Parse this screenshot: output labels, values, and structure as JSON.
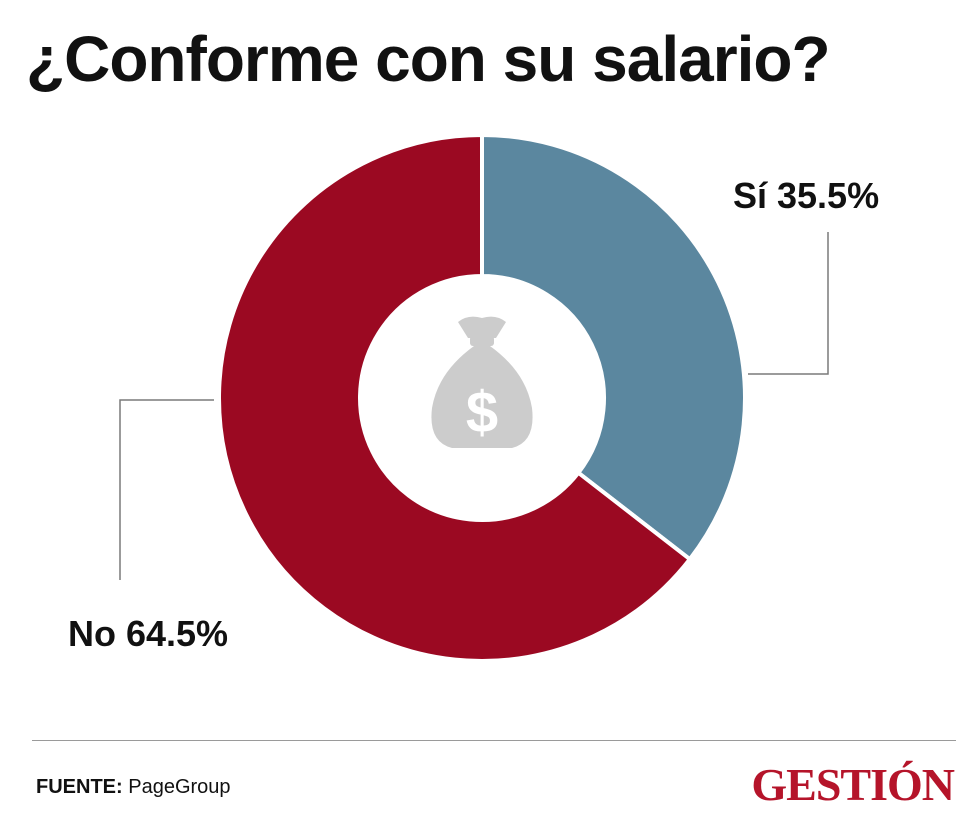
{
  "title": "¿Conforme con su salario?",
  "chart_data": {
    "type": "pie",
    "variant": "donut",
    "title": "¿Conforme con su salario?",
    "slices": [
      {
        "label": "Sí",
        "value": 35.5,
        "display": "Sí 35.5%",
        "color": "#5b879f"
      },
      {
        "label": "No",
        "value": 64.5,
        "display": "No 64.5%",
        "color": "#9b0922"
      }
    ],
    "center_icon": "money-bag-dollar-icon"
  },
  "footer": {
    "source_label": "FUENTE:",
    "source_value": "PageGroup",
    "brand": "GESTIÓN"
  },
  "colors": {
    "si": "#5b879f",
    "no": "#9b0922",
    "icon": "#cccccc",
    "brand": "#b5142a"
  }
}
